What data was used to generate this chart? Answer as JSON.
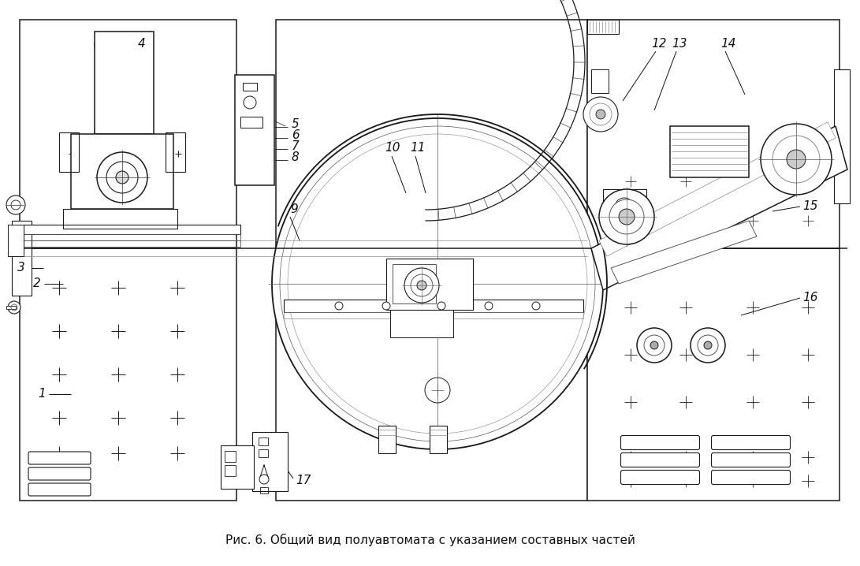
{
  "caption": "Рис. 6. Общий вид полуавтомата с указанием составных частей",
  "caption_fontsize": 11,
  "bg_color": "#ffffff",
  "fig_width": 10.91,
  "fig_height": 7.18,
  "dpi": 100,
  "line_color": "#1a1a1a",
  "line_width": 1.1,
  "white_bg": "#ffffff",
  "light_gray": "#f0f0ee",
  "mid_gray": "#d8d8d6",
  "dark_gray": "#aaaaaa"
}
